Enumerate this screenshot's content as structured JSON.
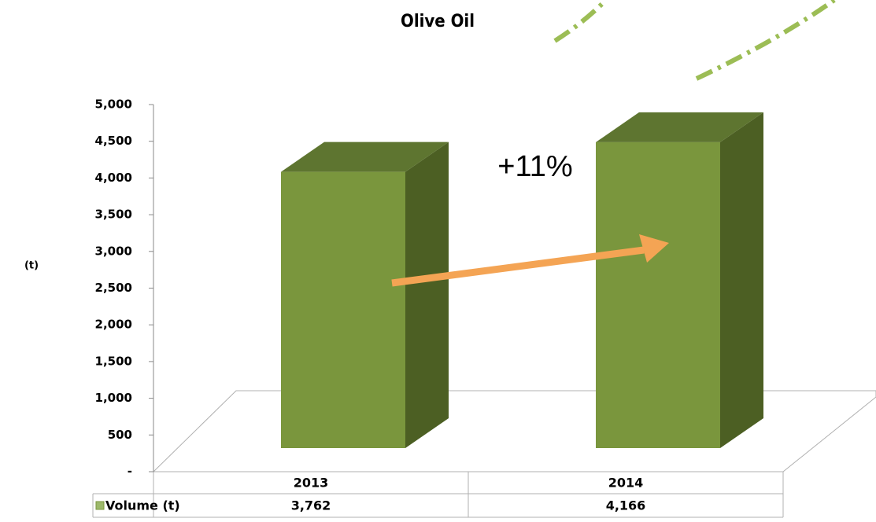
{
  "chart_data": {
    "type": "bar",
    "title": "Olive Oil",
    "y_label": "(t)",
    "annotation": "+11%",
    "categories": [
      "2013",
      "2014"
    ],
    "series": [
      {
        "name": "Volume (t)",
        "color": "#7a963d",
        "values": [
          3762,
          4166
        ],
        "value_labels": [
          "3,762",
          "4,166"
        ]
      }
    ],
    "ylim": [
      0,
      5000
    ],
    "yticks": [
      {
        "value": 0,
        "label": "-"
      },
      500,
      {
        "value": 1000,
        "label": "1,000"
      },
      {
        "value": 1500,
        "label": "1,500"
      },
      {
        "value": 2000,
        "label": "2,000"
      },
      {
        "value": 2500,
        "label": "2,500"
      },
      {
        "value": 3000,
        "label": "3,000"
      },
      {
        "value": 3500,
        "label": "3,500"
      },
      {
        "value": 4000,
        "label": "4,000"
      },
      {
        "value": 4500,
        "label": "4,500"
      },
      {
        "value": 5000,
        "label": "5,000"
      }
    ]
  }
}
